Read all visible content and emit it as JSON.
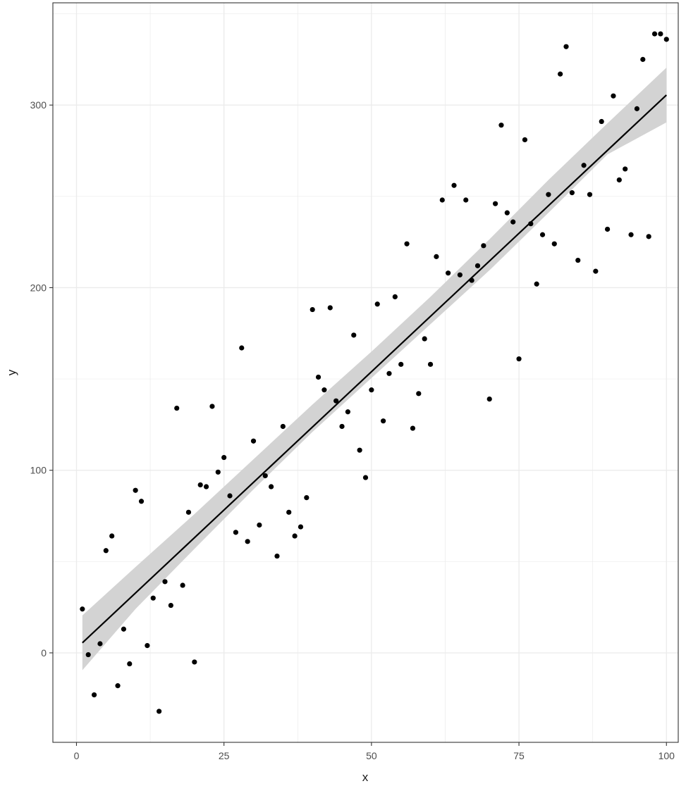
{
  "chart_data": {
    "type": "scatter",
    "title": "",
    "xlabel": "x",
    "ylabel": "y",
    "xlim": [
      -4,
      102
    ],
    "ylim": [
      -49,
      356
    ],
    "x_ticks": [
      0,
      25,
      50,
      75,
      100
    ],
    "y_ticks": [
      0,
      100,
      200,
      300
    ],
    "x_minor": [
      12.5,
      37.5,
      62.5,
      87.5
    ],
    "y_minor": [
      50,
      150,
      250,
      350
    ],
    "grid": true,
    "legend": "none",
    "colors": {
      "points": "#000000",
      "fit_line": "#000000",
      "confidence_band": "#d3d3d3",
      "grid": "#ebebeb",
      "panel_border": "#333333"
    },
    "series": [
      {
        "points": [
          [
            1,
            24
          ],
          [
            2,
            -1
          ],
          [
            3,
            -23
          ],
          [
            4,
            5
          ],
          [
            5,
            56
          ],
          [
            6,
            64
          ],
          [
            7,
            -18
          ],
          [
            8,
            13
          ],
          [
            9,
            -6
          ],
          [
            10,
            89
          ],
          [
            11,
            83
          ],
          [
            12,
            4
          ],
          [
            13,
            30
          ],
          [
            14,
            -32
          ],
          [
            15,
            39
          ],
          [
            16,
            26
          ],
          [
            17,
            134
          ],
          [
            18,
            37
          ],
          [
            19,
            77
          ],
          [
            20,
            -5
          ],
          [
            21,
            92
          ],
          [
            22,
            91
          ],
          [
            23,
            135
          ],
          [
            24,
            99
          ],
          [
            25,
            107
          ],
          [
            26,
            86
          ],
          [
            27,
            66
          ],
          [
            28,
            167
          ],
          [
            29,
            61
          ],
          [
            30,
            116
          ],
          [
            31,
            70
          ],
          [
            32,
            97
          ],
          [
            33,
            91
          ],
          [
            34,
            53
          ],
          [
            35,
            124
          ],
          [
            36,
            77
          ],
          [
            37,
            64
          ],
          [
            38,
            69
          ],
          [
            39,
            85
          ],
          [
            40,
            188
          ],
          [
            41,
            151
          ],
          [
            42,
            144
          ],
          [
            43,
            189
          ],
          [
            44,
            138
          ],
          [
            45,
            124
          ],
          [
            46,
            132
          ],
          [
            47,
            174
          ],
          [
            48,
            111
          ],
          [
            49,
            96
          ],
          [
            50,
            144
          ],
          [
            51,
            191
          ],
          [
            52,
            127
          ],
          [
            53,
            153
          ],
          [
            54,
            195
          ],
          [
            55,
            158
          ],
          [
            56,
            224
          ],
          [
            57,
            123
          ],
          [
            58,
            142
          ],
          [
            59,
            172
          ],
          [
            60,
            158
          ],
          [
            61,
            217
          ],
          [
            62,
            248
          ],
          [
            63,
            208
          ],
          [
            64,
            256
          ],
          [
            65,
            207
          ],
          [
            66,
            248
          ],
          [
            67,
            204
          ],
          [
            68,
            212
          ],
          [
            69,
            223
          ],
          [
            70,
            139
          ],
          [
            71,
            246
          ],
          [
            72,
            289
          ],
          [
            73,
            241
          ],
          [
            74,
            236
          ],
          [
            75,
            161
          ],
          [
            76,
            281
          ],
          [
            77,
            235
          ],
          [
            78,
            202
          ],
          [
            79,
            229
          ],
          [
            80,
            251
          ],
          [
            81,
            224
          ],
          [
            82,
            317
          ],
          [
            83,
            332
          ],
          [
            84,
            252
          ],
          [
            85,
            215
          ],
          [
            86,
            267
          ],
          [
            87,
            251
          ],
          [
            88,
            209
          ],
          [
            89,
            291
          ],
          [
            90,
            232
          ],
          [
            91,
            305
          ],
          [
            92,
            259
          ],
          [
            93,
            265
          ],
          [
            94,
            229
          ],
          [
            95,
            298
          ],
          [
            96,
            325
          ],
          [
            97,
            228
          ],
          [
            98,
            339
          ],
          [
            99,
            339
          ],
          [
            100,
            336
          ]
        ]
      }
    ],
    "fit_line": {
      "x": [
        1,
        100
      ],
      "y": [
        5.5,
        305.5
      ]
    },
    "confidence_band": {
      "x": [
        1,
        10,
        20,
        30,
        40,
        50,
        60,
        70,
        80,
        90,
        100
      ],
      "lower": [
        -9.5,
        24,
        57,
        89.5,
        121,
        150.5,
        180,
        209.5,
        241,
        273,
        290.5
      ],
      "upper": [
        20.5,
        47,
        76,
        106,
        136,
        165,
        195,
        226.5,
        259,
        290,
        320.5
      ]
    }
  }
}
